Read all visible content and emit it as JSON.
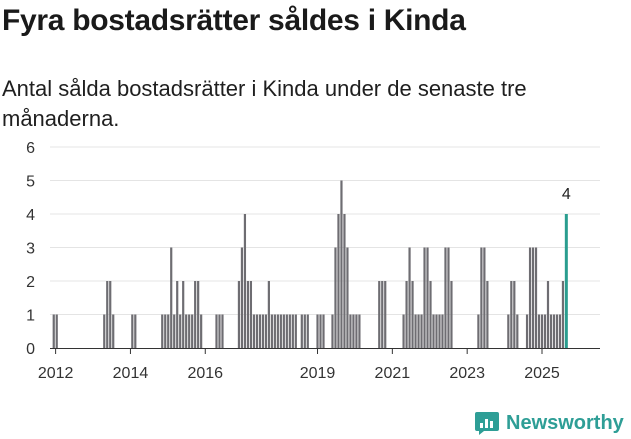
{
  "chart_data": {
    "type": "bar",
    "title": "Fyra bostadsrätter såldes i Kinda",
    "subtitle": "Antal sålda bostadsrätter i Kinda under de senaste tre månaderna.",
    "xlabel": "",
    "ylabel": "",
    "ylim": [
      0,
      6
    ],
    "yticks": [
      0,
      1,
      2,
      3,
      4,
      5,
      6
    ],
    "xlim": [
      2011.85,
      2026.55
    ],
    "xticks": [
      {
        "value": 2012.0,
        "label": "2012"
      },
      {
        "value": 2014.0,
        "label": "2014"
      },
      {
        "value": 2016.0,
        "label": "2016"
      },
      {
        "value": 2019.0,
        "label": "2019"
      },
      {
        "value": 2021.0,
        "label": "2021"
      },
      {
        "value": 2023.0,
        "label": "2023"
      },
      {
        "value": 2025.0,
        "label": "2025"
      }
    ],
    "grid": true,
    "bar_color": "#6e6d72",
    "highlight_color": "#2a9d8f",
    "series": [
      {
        "name": "Sålda bostadsrätter",
        "points": [
          [
            2011.95,
            1
          ],
          [
            2012.03,
            1
          ],
          [
            2013.3,
            1
          ],
          [
            2013.38,
            2
          ],
          [
            2013.46,
            2
          ],
          [
            2013.54,
            1
          ],
          [
            2014.05,
            1
          ],
          [
            2014.13,
            1
          ],
          [
            2014.85,
            1
          ],
          [
            2014.93,
            1
          ],
          [
            2015.01,
            1
          ],
          [
            2015.09,
            3
          ],
          [
            2015.17,
            1
          ],
          [
            2015.25,
            2
          ],
          [
            2015.33,
            1
          ],
          [
            2015.41,
            2
          ],
          [
            2015.49,
            1
          ],
          [
            2015.57,
            1
          ],
          [
            2015.65,
            1
          ],
          [
            2015.73,
            2
          ],
          [
            2015.81,
            2
          ],
          [
            2015.89,
            1
          ],
          [
            2016.3,
            1
          ],
          [
            2016.38,
            1
          ],
          [
            2016.46,
            1
          ],
          [
            2016.9,
            2
          ],
          [
            2016.98,
            3
          ],
          [
            2017.06,
            4
          ],
          [
            2017.14,
            2
          ],
          [
            2017.22,
            2
          ],
          [
            2017.3,
            1
          ],
          [
            2017.38,
            1
          ],
          [
            2017.46,
            1
          ],
          [
            2017.54,
            1
          ],
          [
            2017.62,
            1
          ],
          [
            2017.7,
            2
          ],
          [
            2017.78,
            1
          ],
          [
            2017.86,
            1
          ],
          [
            2017.94,
            1
          ],
          [
            2018.02,
            1
          ],
          [
            2018.1,
            1
          ],
          [
            2018.18,
            1
          ],
          [
            2018.26,
            1
          ],
          [
            2018.34,
            1
          ],
          [
            2018.42,
            1
          ],
          [
            2018.58,
            1
          ],
          [
            2018.66,
            1
          ],
          [
            2018.74,
            1
          ],
          [
            2019.0,
            1
          ],
          [
            2019.08,
            1
          ],
          [
            2019.16,
            1
          ],
          [
            2019.4,
            1
          ],
          [
            2019.48,
            3
          ],
          [
            2019.56,
            4
          ],
          [
            2019.64,
            5
          ],
          [
            2019.72,
            4
          ],
          [
            2019.8,
            3
          ],
          [
            2019.88,
            1
          ],
          [
            2019.96,
            1
          ],
          [
            2020.04,
            1
          ],
          [
            2020.12,
            1
          ],
          [
            2020.65,
            2
          ],
          [
            2020.73,
            2
          ],
          [
            2020.81,
            2
          ],
          [
            2021.3,
            1
          ],
          [
            2021.38,
            2
          ],
          [
            2021.46,
            3
          ],
          [
            2021.54,
            2
          ],
          [
            2021.62,
            1
          ],
          [
            2021.7,
            1
          ],
          [
            2021.78,
            1
          ],
          [
            2021.86,
            3
          ],
          [
            2021.94,
            3
          ],
          [
            2022.02,
            2
          ],
          [
            2022.1,
            1
          ],
          [
            2022.18,
            1
          ],
          [
            2022.26,
            1
          ],
          [
            2022.34,
            1
          ],
          [
            2022.42,
            3
          ],
          [
            2022.5,
            3
          ],
          [
            2022.58,
            2
          ],
          [
            2023.3,
            1
          ],
          [
            2023.38,
            3
          ],
          [
            2023.46,
            3
          ],
          [
            2023.54,
            2
          ],
          [
            2024.1,
            1
          ],
          [
            2024.18,
            2
          ],
          [
            2024.26,
            2
          ],
          [
            2024.34,
            1
          ],
          [
            2024.6,
            1
          ],
          [
            2024.68,
            3
          ],
          [
            2024.76,
            3
          ],
          [
            2024.84,
            3
          ],
          [
            2024.92,
            1
          ],
          [
            2025.0,
            1
          ],
          [
            2025.08,
            1
          ],
          [
            2025.16,
            2
          ],
          [
            2025.24,
            1
          ],
          [
            2025.32,
            1
          ],
          [
            2025.4,
            1
          ],
          [
            2025.48,
            1
          ],
          [
            2025.56,
            2
          ]
        ]
      }
    ],
    "highlight": {
      "x": 2025.65,
      "value": 4,
      "label": "4"
    }
  },
  "branding": {
    "name": "Newsworthy",
    "icon": "newsworthy-logo-icon",
    "color": "#2e9e96"
  }
}
